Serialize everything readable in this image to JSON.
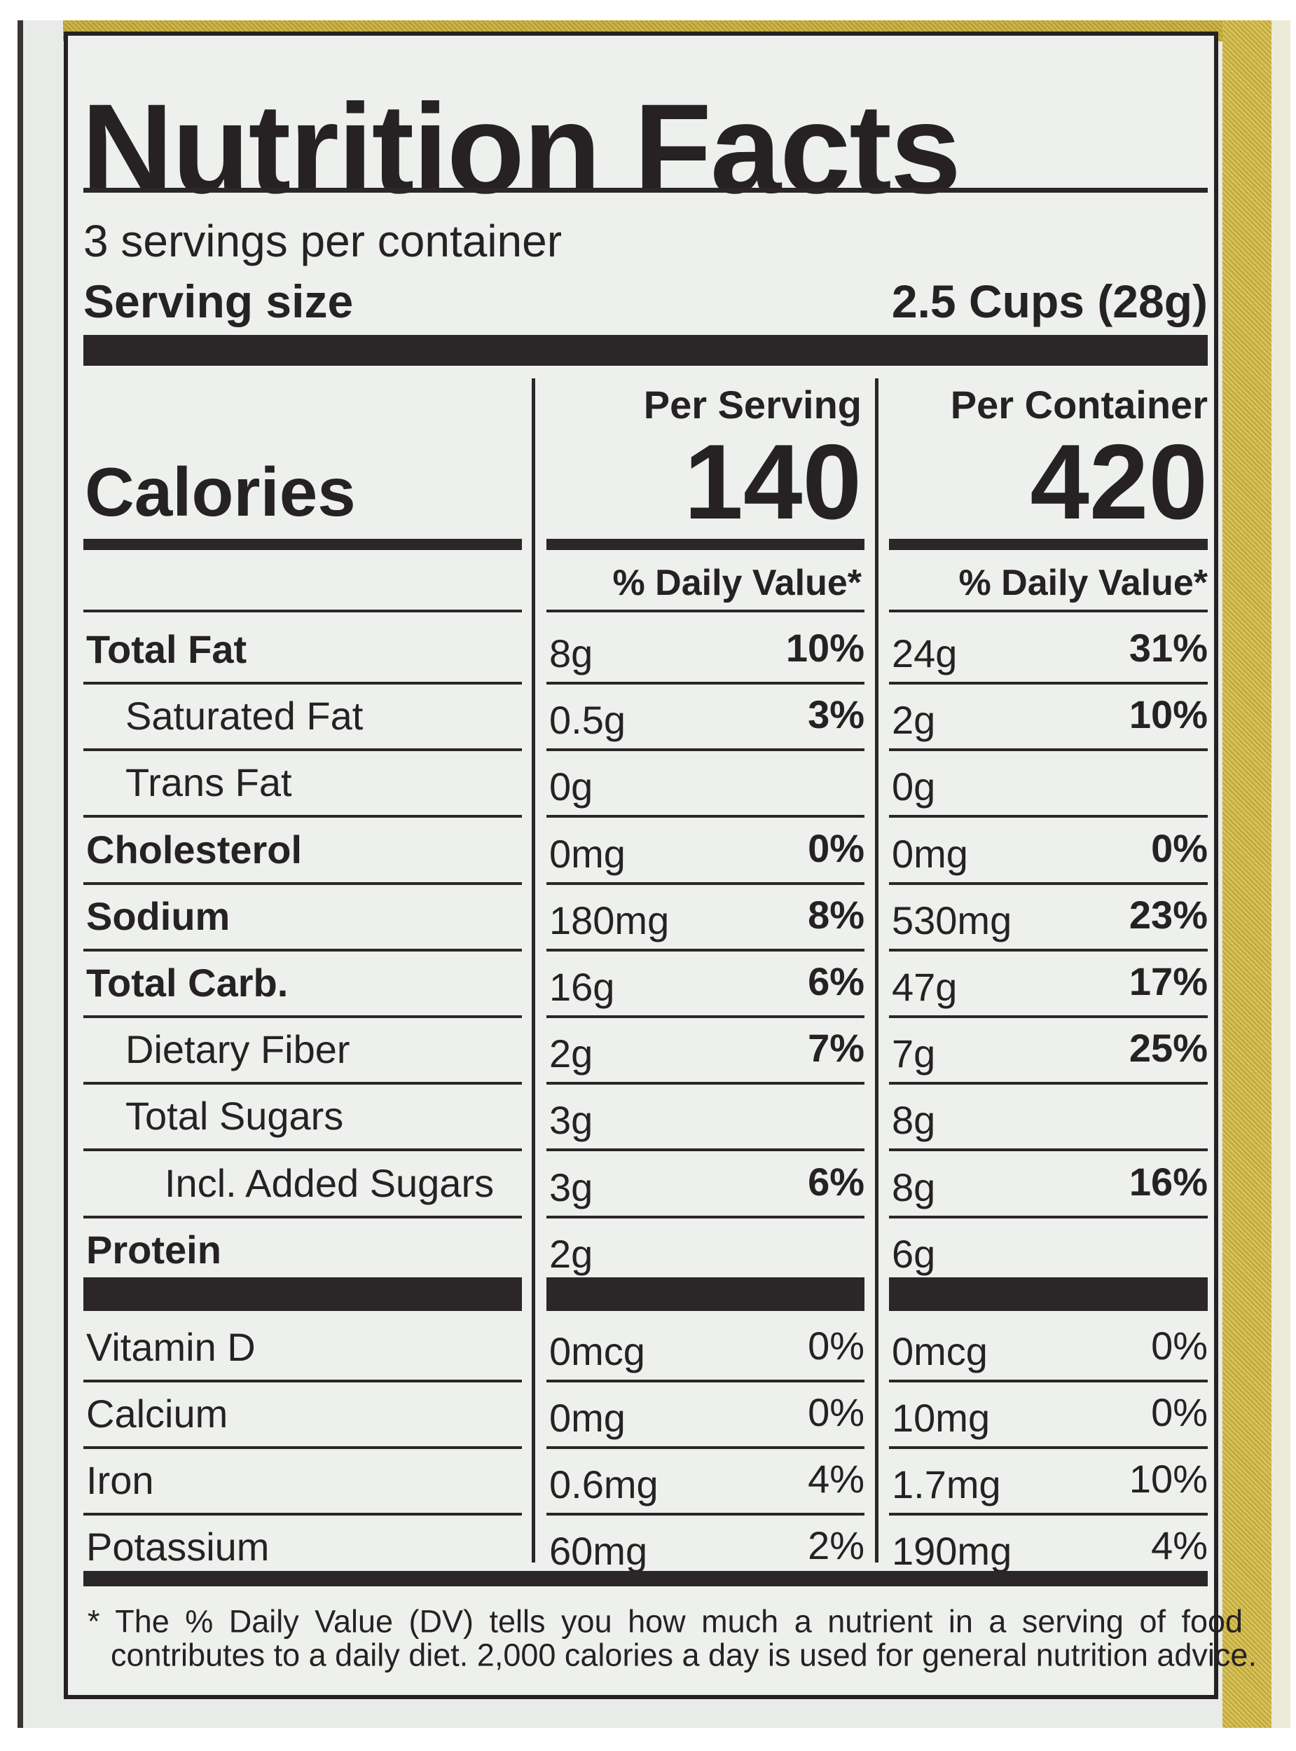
{
  "title": "Nutrition Facts",
  "servings_per_container": "3 servings per container",
  "serving_size_label": "Serving size",
  "serving_size_value": "2.5 Cups (28g)",
  "calories_label": "Calories",
  "columns": [
    {
      "header": "Per Serving",
      "calories": "140",
      "dv_header": "% Daily Value*"
    },
    {
      "header": "Per Container",
      "calories": "420",
      "dv_header": "% Daily Value*"
    }
  ],
  "nutrients": [
    {
      "label": "Total Fat",
      "bold": true,
      "indent": 0,
      "values": [
        [
          "8g",
          "10%"
        ],
        [
          "24g",
          "31%"
        ]
      ]
    },
    {
      "label": "Saturated Fat",
      "bold": false,
      "indent": 1,
      "values": [
        [
          "0.5g",
          "3%"
        ],
        [
          "2g",
          "10%"
        ]
      ]
    },
    {
      "label": "Trans Fat",
      "bold": false,
      "indent": 1,
      "values": [
        [
          "0g",
          ""
        ],
        [
          "0g",
          ""
        ]
      ]
    },
    {
      "label": "Cholesterol",
      "bold": true,
      "indent": 0,
      "values": [
        [
          "0mg",
          "0%"
        ],
        [
          "0mg",
          "0%"
        ]
      ]
    },
    {
      "label": "Sodium",
      "bold": true,
      "indent": 0,
      "values": [
        [
          "180mg",
          "8%"
        ],
        [
          "530mg",
          "23%"
        ]
      ]
    },
    {
      "label": "Total Carb.",
      "bold": true,
      "indent": 0,
      "values": [
        [
          "16g",
          "6%"
        ],
        [
          "47g",
          "17%"
        ]
      ]
    },
    {
      "label": "Dietary Fiber",
      "bold": false,
      "indent": 1,
      "values": [
        [
          "2g",
          "7%"
        ],
        [
          "7g",
          "25%"
        ]
      ]
    },
    {
      "label": "Total Sugars",
      "bold": false,
      "indent": 1,
      "values": [
        [
          "3g",
          ""
        ],
        [
          "8g",
          ""
        ]
      ]
    },
    {
      "label": "Incl. Added Sugars",
      "bold": false,
      "indent": 2,
      "values": [
        [
          "3g",
          "6%"
        ],
        [
          "8g",
          "16%"
        ]
      ]
    },
    {
      "label": "Protein",
      "bold": true,
      "indent": 0,
      "values": [
        [
          "2g",
          ""
        ],
        [
          "6g",
          ""
        ]
      ]
    }
  ],
  "micronutrients": [
    {
      "label": "Vitamin D",
      "values": [
        [
          "0mcg",
          "0%"
        ],
        [
          "0mcg",
          "0%"
        ]
      ]
    },
    {
      "label": "Calcium",
      "values": [
        [
          "0mg",
          "0%"
        ],
        [
          "10mg",
          "0%"
        ]
      ]
    },
    {
      "label": "Iron",
      "values": [
        [
          "0.6mg",
          "4%"
        ],
        [
          "1.7mg",
          "10%"
        ]
      ]
    },
    {
      "label": "Potassium",
      "values": [
        [
          "60mg",
          "2%"
        ],
        [
          "190mg",
          "4%"
        ]
      ]
    }
  ],
  "footnote_line1": "* The % Daily Value (DV) tells you how much a nutrient in a serving of food",
  "footnote_line2": "contributes to a daily diet. 2,000 calories a day is used for general nutrition advice.",
  "colors": {
    "ink": "#262223",
    "label_bg": "#eef0ee",
    "package_yellow": "#c9b44e"
  }
}
